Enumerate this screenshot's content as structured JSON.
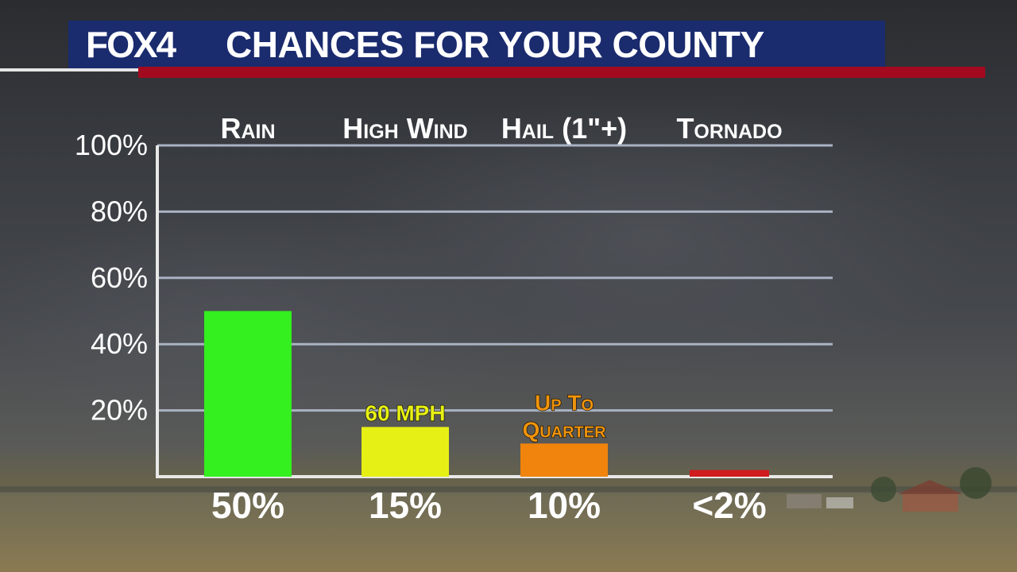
{
  "header": {
    "logo": "FOX4",
    "title": "CHANCES FOR YOUR COUNTY"
  },
  "colors": {
    "header_blue": "#1a2b6e",
    "header_red": "#a3091f",
    "grid": "#a9b2c2"
  },
  "chart_data": {
    "type": "bar",
    "categories": [
      "Rain",
      "High Wind",
      "Hail (1\"+)",
      "Tornado"
    ],
    "values": [
      50,
      15,
      10,
      2
    ],
    "value_labels": [
      "50%",
      "15%",
      "10%",
      "<2%"
    ],
    "bar_colors": [
      "#33f01e",
      "#e7f014",
      "#f0840c",
      "#d01b1f"
    ],
    "annotations": [
      {
        "category": "High Wind",
        "lines": [
          "60 MPH"
        ],
        "color": "#e7f014"
      },
      {
        "category": "Hail (1\"+)",
        "lines": [
          "Up To",
          "Quarter"
        ],
        "color": "#f0940c"
      }
    ],
    "yticks": [
      "20%",
      "40%",
      "60%",
      "80%",
      "100%"
    ],
    "ytick_values": [
      20,
      40,
      60,
      80,
      100
    ],
    "ylim": [
      0,
      100
    ],
    "grid": true
  }
}
